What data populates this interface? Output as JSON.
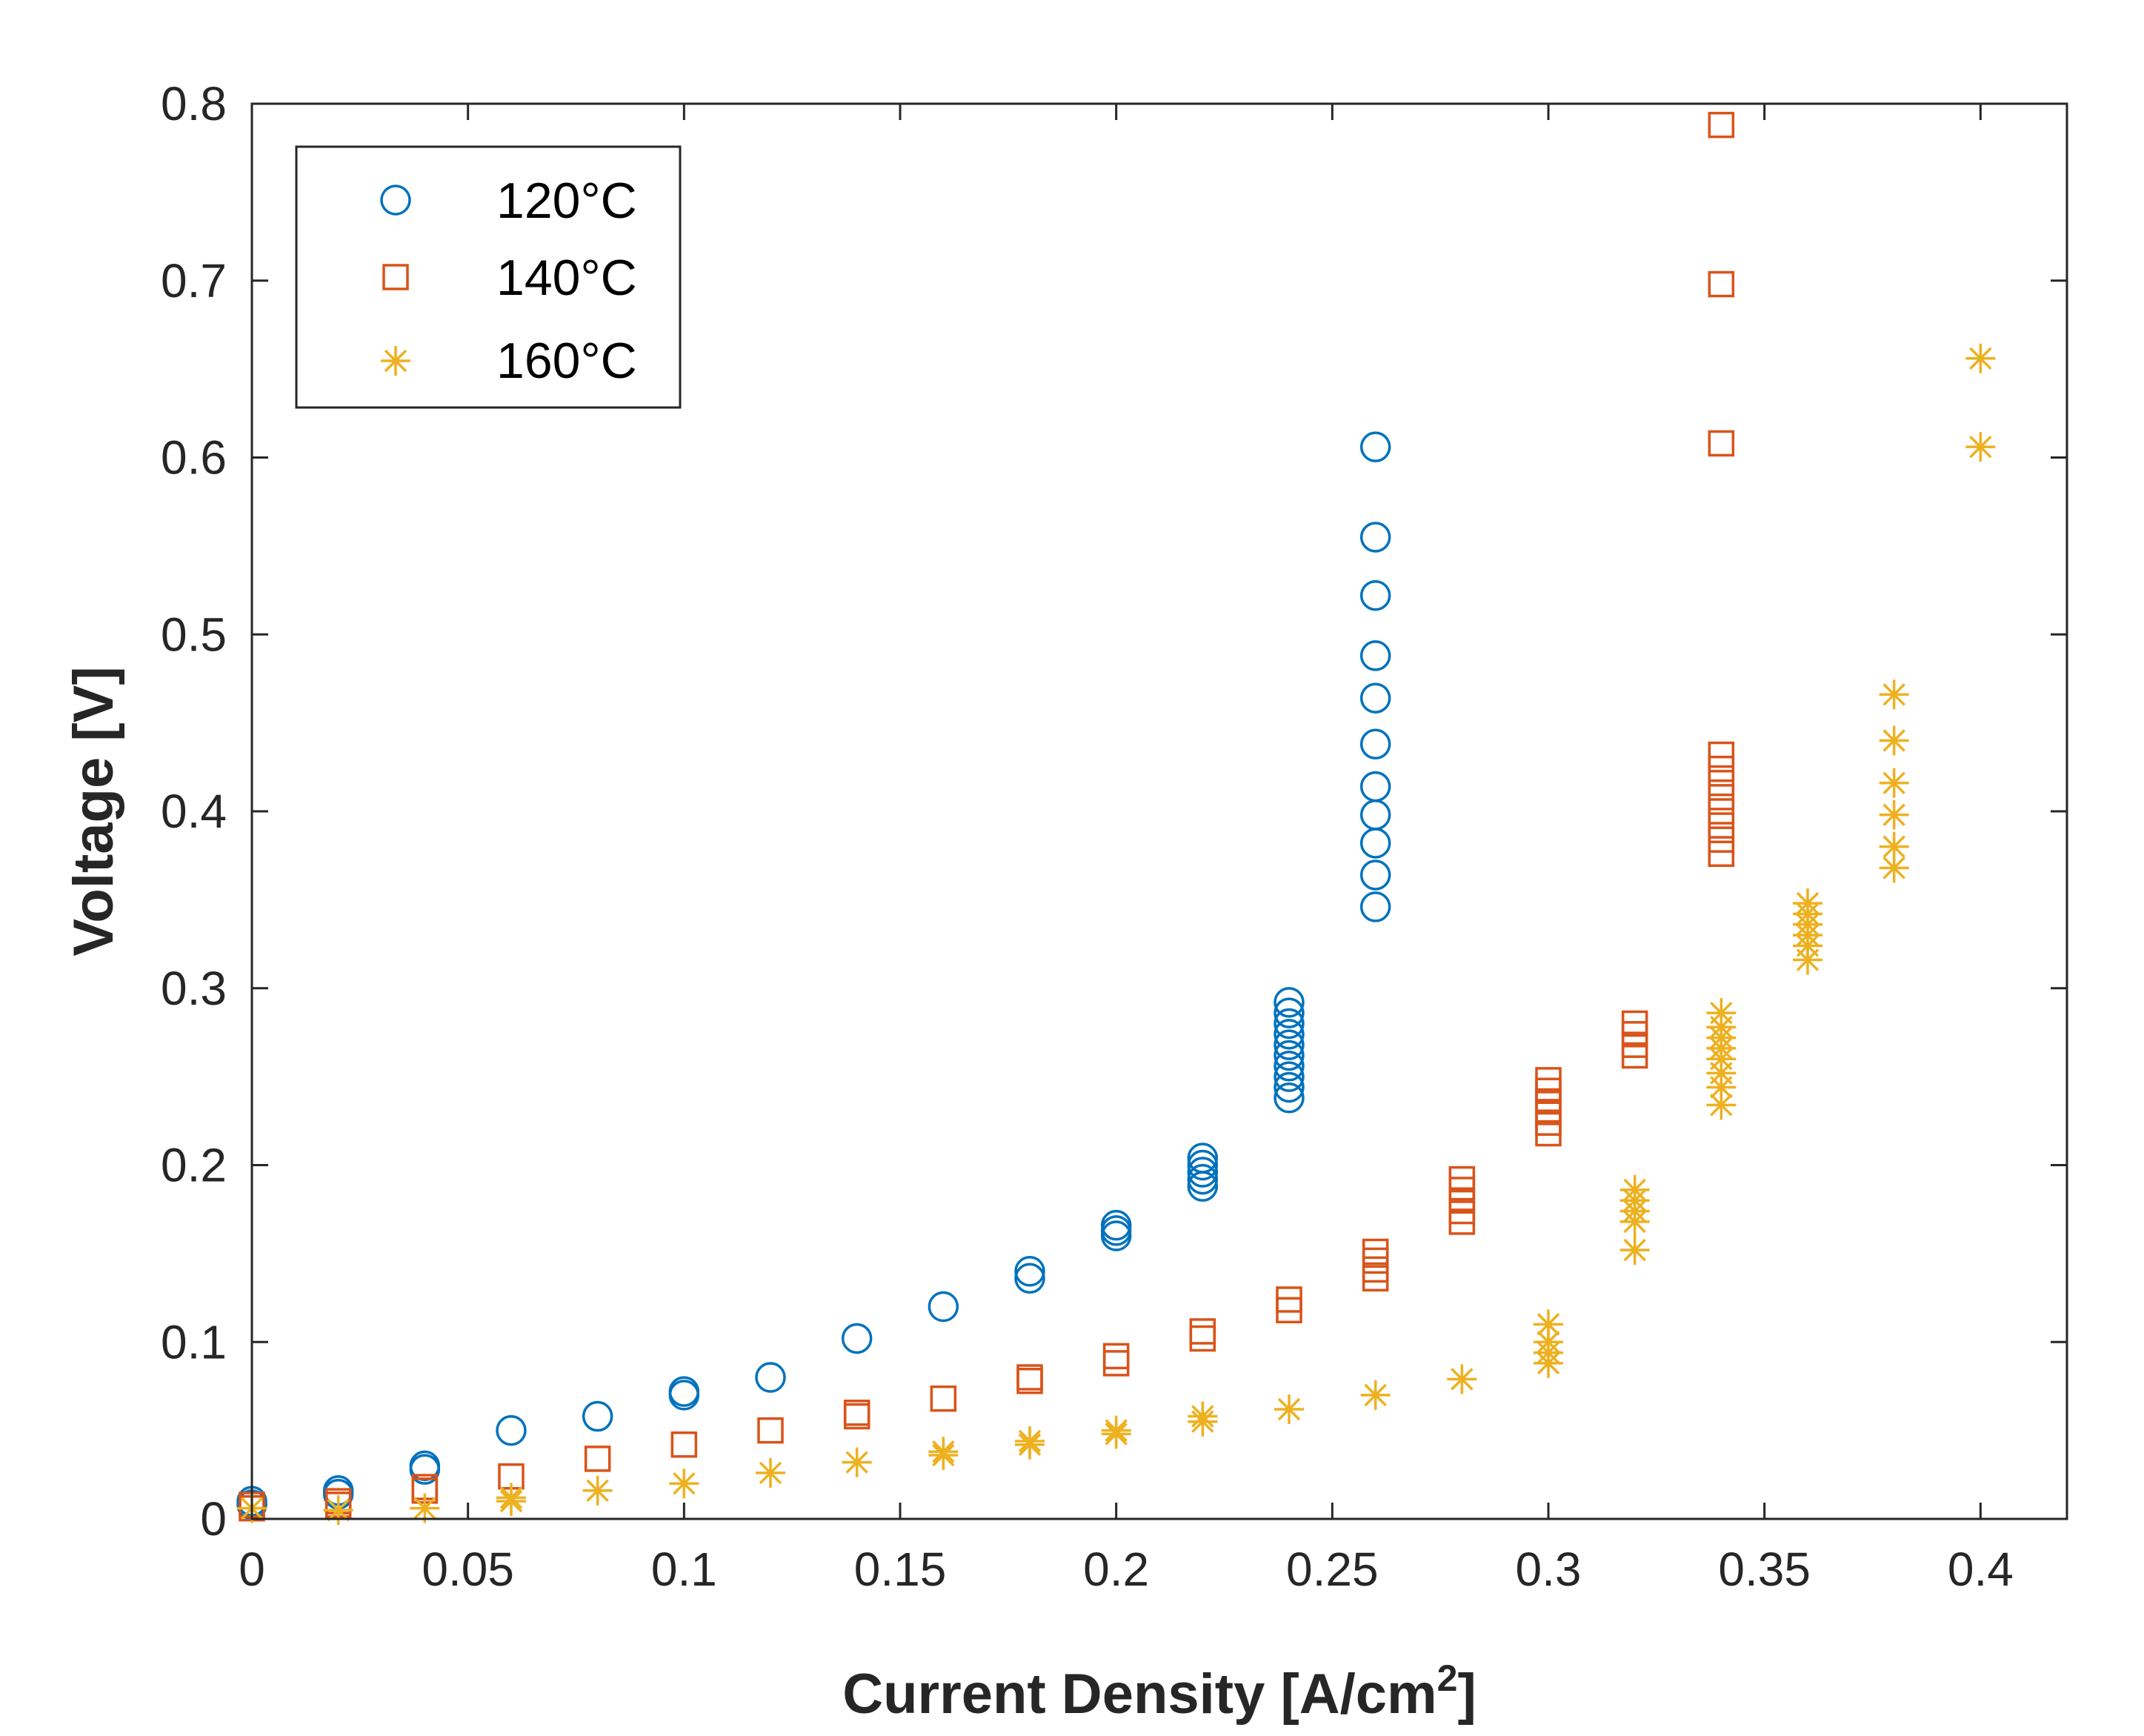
{
  "chart_data": {
    "type": "scatter",
    "title": "",
    "xlabel": "Current Density [A/cm",
    "xlabel_superscript": "2",
    "xlabel_suffix": "]",
    "ylabel": "Voltage [V]",
    "xlim": [
      0,
      0.42
    ],
    "ylim": [
      0,
      0.8
    ],
    "xticks": [
      0,
      0.05,
      0.1,
      0.15,
      0.2,
      0.25,
      0.3,
      0.35,
      0.4
    ],
    "xtick_labels": [
      "0",
      "0.05",
      "0.1",
      "0.15",
      "0.2",
      "0.25",
      "0.3",
      "0.35",
      "0.4"
    ],
    "yticks": [
      0,
      0.1,
      0.2,
      0.3,
      0.4,
      0.5,
      0.6,
      0.7,
      0.8
    ],
    "ytick_labels": [
      "0",
      "0.1",
      "0.2",
      "0.3",
      "0.4",
      "0.5",
      "0.6",
      "0.7",
      "0.8"
    ],
    "grid": false,
    "legend": "top-left",
    "series": [
      {
        "name": "120°C",
        "marker": "circle",
        "color": "#0072BD",
        "points": [
          [
            0,
            0.008
          ],
          [
            0,
            0.01
          ],
          [
            0.02,
            0.014
          ],
          [
            0.02,
            0.016
          ],
          [
            0.04,
            0.028
          ],
          [
            0.04,
            0.03
          ],
          [
            0.06,
            0.05
          ],
          [
            0.08,
            0.058
          ],
          [
            0.1,
            0.07
          ],
          [
            0.1,
            0.072
          ],
          [
            0.12,
            0.08
          ],
          [
            0.14,
            0.102
          ],
          [
            0.16,
            0.12
          ],
          [
            0.18,
            0.136
          ],
          [
            0.18,
            0.14
          ],
          [
            0.2,
            0.16
          ],
          [
            0.2,
            0.163
          ],
          [
            0.2,
            0.166
          ],
          [
            0.22,
            0.188
          ],
          [
            0.22,
            0.192
          ],
          [
            0.22,
            0.196
          ],
          [
            0.22,
            0.2
          ],
          [
            0.22,
            0.204
          ],
          [
            0.24,
            0.238
          ],
          [
            0.24,
            0.244
          ],
          [
            0.24,
            0.25
          ],
          [
            0.24,
            0.256
          ],
          [
            0.24,
            0.262
          ],
          [
            0.24,
            0.268
          ],
          [
            0.24,
            0.274
          ],
          [
            0.24,
            0.28
          ],
          [
            0.24,
            0.286
          ],
          [
            0.24,
            0.292
          ],
          [
            0.26,
            0.346
          ],
          [
            0.26,
            0.364
          ],
          [
            0.26,
            0.382
          ],
          [
            0.26,
            0.398
          ],
          [
            0.26,
            0.414
          ],
          [
            0.26,
            0.438
          ],
          [
            0.26,
            0.464
          ],
          [
            0.26,
            0.488
          ],
          [
            0.26,
            0.522
          ],
          [
            0.26,
            0.555
          ],
          [
            0.26,
            0.606
          ]
        ]
      },
      {
        "name": "140°C",
        "marker": "square",
        "color": "#D95319",
        "points": [
          [
            0,
            0.006
          ],
          [
            0,
            0.008
          ],
          [
            0.02,
            0.008
          ],
          [
            0.02,
            0.01
          ],
          [
            0.04,
            0.016
          ],
          [
            0.04,
            0.018
          ],
          [
            0.06,
            0.024
          ],
          [
            0.08,
            0.034
          ],
          [
            0.1,
            0.042
          ],
          [
            0.12,
            0.05
          ],
          [
            0.14,
            0.058
          ],
          [
            0.14,
            0.06
          ],
          [
            0.16,
            0.068
          ],
          [
            0.18,
            0.078
          ],
          [
            0.18,
            0.08
          ],
          [
            0.2,
            0.088
          ],
          [
            0.2,
            0.092
          ],
          [
            0.22,
            0.102
          ],
          [
            0.22,
            0.106
          ],
          [
            0.24,
            0.118
          ],
          [
            0.24,
            0.124
          ],
          [
            0.26,
            0.136
          ],
          [
            0.26,
            0.141
          ],
          [
            0.26,
            0.146
          ],
          [
            0.26,
            0.151
          ],
          [
            0.28,
            0.168
          ],
          [
            0.28,
            0.174
          ],
          [
            0.28,
            0.18
          ],
          [
            0.28,
            0.186
          ],
          [
            0.28,
            0.192
          ],
          [
            0.3,
            0.218
          ],
          [
            0.3,
            0.224
          ],
          [
            0.3,
            0.23
          ],
          [
            0.3,
            0.236
          ],
          [
            0.3,
            0.242
          ],
          [
            0.3,
            0.248
          ],
          [
            0.32,
            0.262
          ],
          [
            0.32,
            0.268
          ],
          [
            0.32,
            0.274
          ],
          [
            0.32,
            0.28
          ],
          [
            0.34,
            0.376
          ],
          [
            0.34,
            0.384
          ],
          [
            0.34,
            0.392
          ],
          [
            0.34,
            0.4
          ],
          [
            0.34,
            0.408
          ],
          [
            0.34,
            0.416
          ],
          [
            0.34,
            0.424
          ],
          [
            0.34,
            0.432
          ],
          [
            0.34,
            0.608
          ],
          [
            0.34,
            0.698
          ],
          [
            0.34,
            0.788
          ]
        ]
      },
      {
        "name": "160°C",
        "marker": "asterisk",
        "color": "#EDB120",
        "points": [
          [
            0,
            0.006
          ],
          [
            0.02,
            0.005
          ],
          [
            0.04,
            0.006
          ],
          [
            0.06,
            0.01
          ],
          [
            0.06,
            0.012
          ],
          [
            0.08,
            0.016
          ],
          [
            0.1,
            0.02
          ],
          [
            0.12,
            0.026
          ],
          [
            0.14,
            0.032
          ],
          [
            0.16,
            0.036
          ],
          [
            0.16,
            0.038
          ],
          [
            0.18,
            0.042
          ],
          [
            0.18,
            0.044
          ],
          [
            0.2,
            0.048
          ],
          [
            0.2,
            0.05
          ],
          [
            0.22,
            0.055
          ],
          [
            0.22,
            0.058
          ],
          [
            0.24,
            0.062
          ],
          [
            0.26,
            0.07
          ],
          [
            0.28,
            0.079
          ],
          [
            0.3,
            0.088
          ],
          [
            0.3,
            0.094
          ],
          [
            0.3,
            0.1
          ],
          [
            0.3,
            0.11
          ],
          [
            0.32,
            0.152
          ],
          [
            0.32,
            0.168
          ],
          [
            0.32,
            0.174
          ],
          [
            0.32,
            0.18
          ],
          [
            0.32,
            0.186
          ],
          [
            0.34,
            0.234
          ],
          [
            0.34,
            0.244
          ],
          [
            0.34,
            0.252
          ],
          [
            0.34,
            0.26
          ],
          [
            0.34,
            0.266
          ],
          [
            0.34,
            0.272
          ],
          [
            0.34,
            0.278
          ],
          [
            0.34,
            0.286
          ],
          [
            0.36,
            0.316
          ],
          [
            0.36,
            0.324
          ],
          [
            0.36,
            0.33
          ],
          [
            0.36,
            0.336
          ],
          [
            0.36,
            0.342
          ],
          [
            0.36,
            0.348
          ],
          [
            0.38,
            0.368
          ],
          [
            0.38,
            0.38
          ],
          [
            0.38,
            0.398
          ],
          [
            0.38,
            0.416
          ],
          [
            0.38,
            0.44
          ],
          [
            0.38,
            0.466
          ],
          [
            0.4,
            0.606
          ],
          [
            0.4,
            0.656
          ]
        ]
      }
    ]
  }
}
